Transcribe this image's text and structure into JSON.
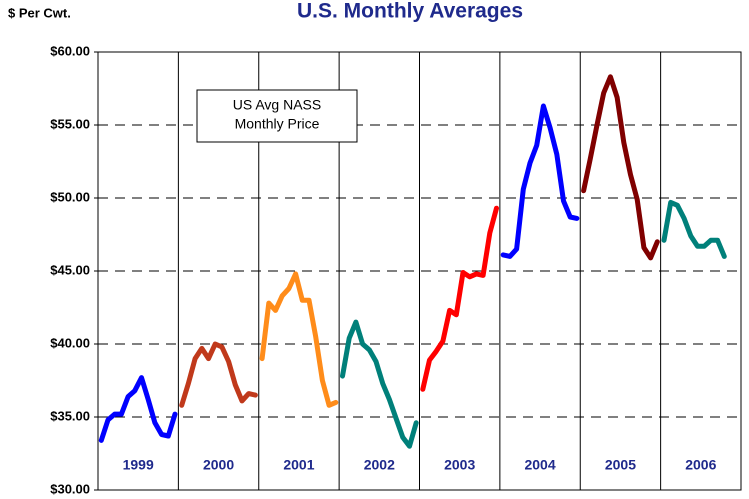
{
  "chart_data": {
    "type": "line",
    "title": "U.S. Monthly Averages",
    "y_label": "$ Per Cwt.",
    "annotation": [
      "US Avg NASS",
      "Monthly Price"
    ],
    "ylim": [
      30,
      60
    ],
    "yticks": [
      {
        "value": 30,
        "label": "$30.00"
      },
      {
        "value": 35,
        "label": "$35.00"
      },
      {
        "value": 40,
        "label": "$40.00"
      },
      {
        "value": 45,
        "label": "$45.00"
      },
      {
        "value": 50,
        "label": "$50.00"
      },
      {
        "value": 55,
        "label": "$55.00"
      },
      {
        "value": 60,
        "label": "$60.00"
      }
    ],
    "grid": true,
    "series": [
      {
        "name": "1999",
        "color": "#0000ff",
        "values": [
          33.4,
          34.8,
          35.2,
          35.2,
          36.4,
          36.8,
          37.7,
          36.2,
          34.6,
          33.8,
          33.7,
          35.2
        ]
      },
      {
        "name": "2000",
        "color": "#c0391b",
        "values": [
          35.8,
          37.3,
          39.0,
          39.7,
          39.0,
          40.0,
          39.8,
          38.8,
          37.2,
          36.1,
          36.6,
          36.5
        ]
      },
      {
        "name": "2001",
        "color": "#ff8c1a",
        "values": [
          39.0,
          42.8,
          42.3,
          43.3,
          43.8,
          44.8,
          43.0,
          43.0,
          40.5,
          37.5,
          35.8,
          36.0
        ]
      },
      {
        "name": "2002",
        "color": "#00807a",
        "values": [
          37.8,
          40.4,
          41.5,
          40.0,
          39.6,
          38.8,
          37.3,
          36.2,
          34.9,
          33.6,
          33.0,
          34.6
        ]
      },
      {
        "name": "2003",
        "color": "#ff0000",
        "values": [
          36.9,
          38.9,
          39.5,
          40.2,
          42.3,
          42.0,
          44.9,
          44.6,
          44.8,
          44.7,
          47.6,
          49.3
        ]
      },
      {
        "name": "2004",
        "color": "#0000ff",
        "values": [
          46.1,
          46.0,
          46.5,
          50.6,
          52.4,
          53.6,
          56.3,
          54.8,
          53.0,
          49.8,
          48.7,
          48.6
        ]
      },
      {
        "name": "2005",
        "color": "#800000",
        "values": [
          50.5,
          52.7,
          55.0,
          57.2,
          58.3,
          56.9,
          53.8,
          51.6,
          49.9,
          46.6,
          45.9,
          47.0
        ]
      },
      {
        "name": "2006",
        "color": "#00807a",
        "values": [
          47.1,
          49.7,
          49.5,
          48.6,
          47.4,
          46.7,
          46.7,
          47.1,
          47.1,
          46.0,
          null,
          null
        ]
      }
    ]
  }
}
